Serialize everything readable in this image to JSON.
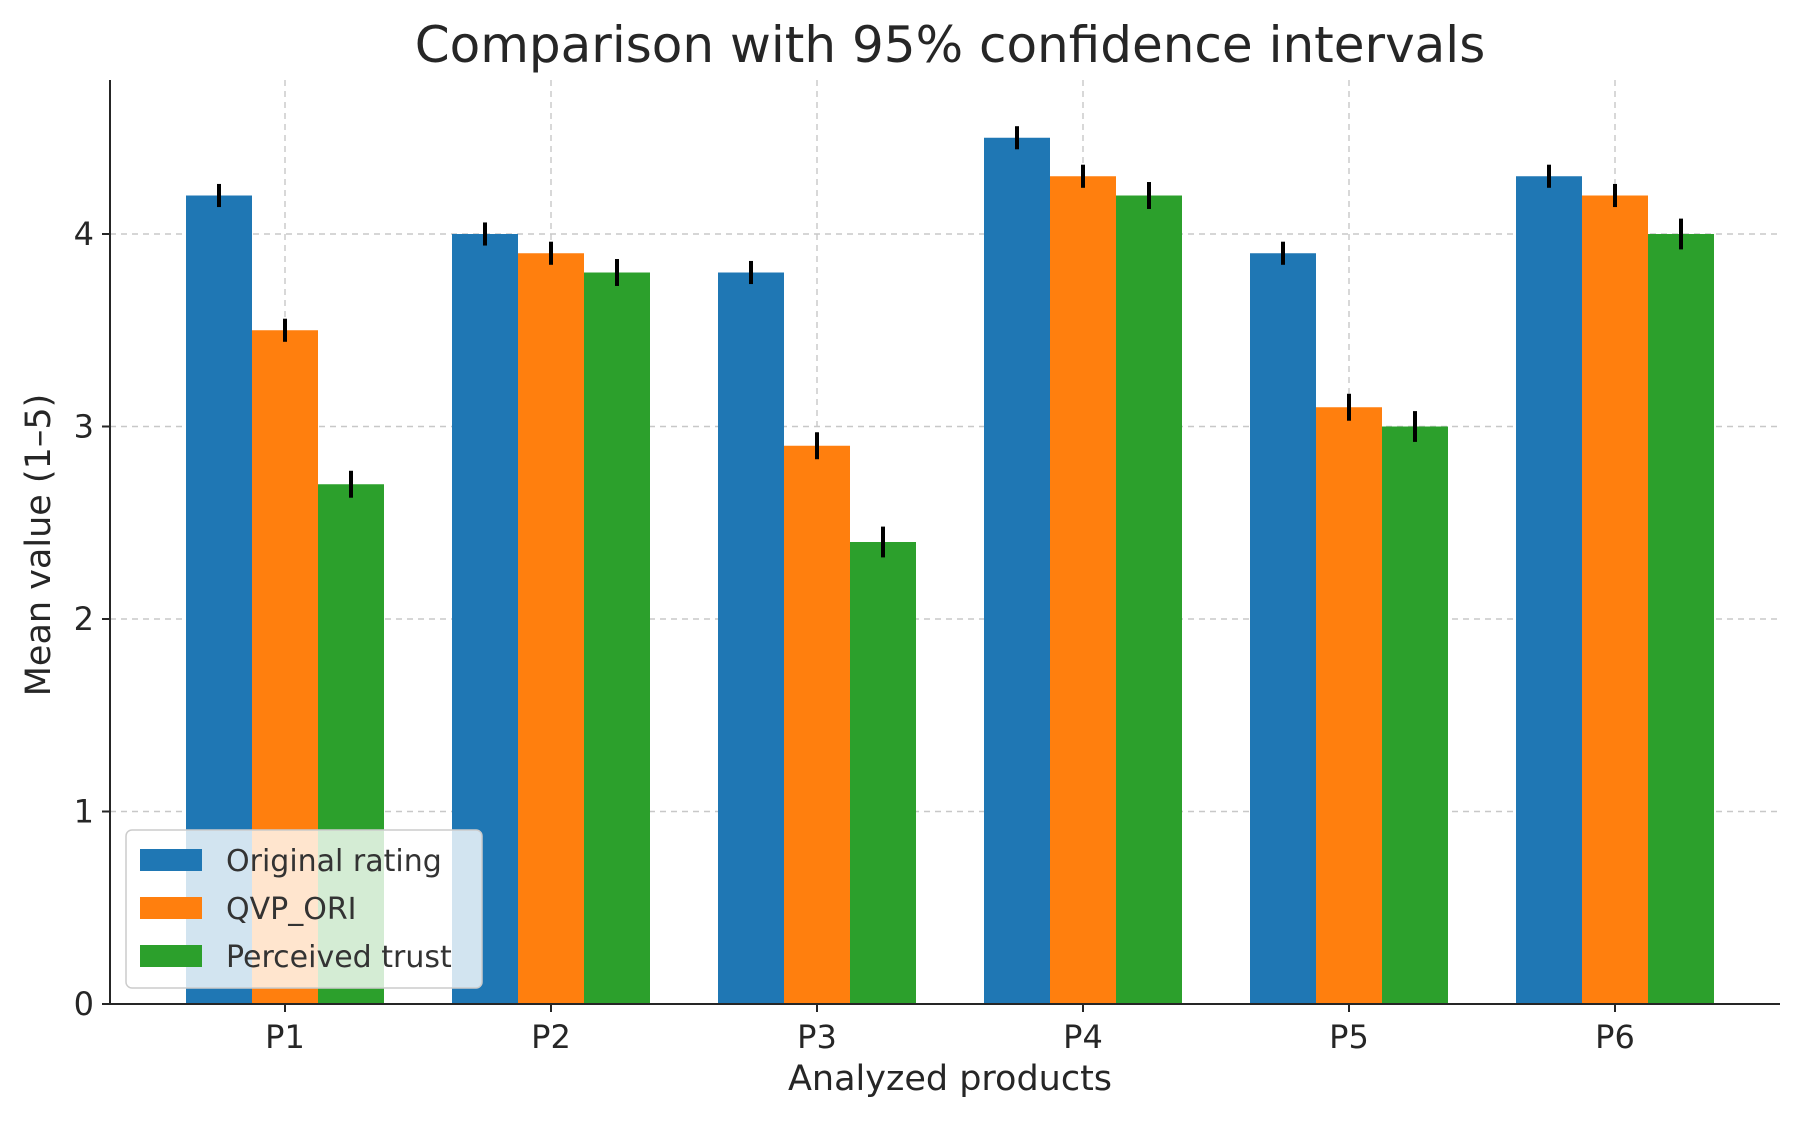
{
  "chart_data": {
    "type": "bar",
    "title": "Comparison with 95% confidence intervals",
    "xlabel": "Analyzed products",
    "ylabel": "Mean value (1–5)",
    "categories": [
      "P1",
      "P2",
      "P3",
      "P4",
      "P5",
      "P6"
    ],
    "series": [
      {
        "name": "Original rating",
        "color": "#1f77b4",
        "values": [
          4.2,
          4.0,
          3.8,
          4.5,
          3.9,
          4.3
        ],
        "ci": [
          0.06,
          0.06,
          0.06,
          0.06,
          0.06,
          0.06
        ]
      },
      {
        "name": "QVP_ORI",
        "color": "#ff7f0e",
        "values": [
          3.5,
          3.9,
          2.9,
          4.3,
          3.1,
          4.2
        ],
        "ci": [
          0.06,
          0.06,
          0.07,
          0.06,
          0.07,
          0.06
        ]
      },
      {
        "name": "Perceived trust",
        "color": "#2ca02c",
        "values": [
          2.7,
          3.8,
          2.4,
          4.2,
          3.0,
          4.0
        ],
        "ci": [
          0.07,
          0.07,
          0.08,
          0.07,
          0.08,
          0.08
        ]
      }
    ],
    "ylim": [
      0,
      4.8
    ],
    "yticks": [
      0,
      1,
      2,
      3,
      4
    ],
    "grid": true,
    "legend_position": "lower-left"
  }
}
